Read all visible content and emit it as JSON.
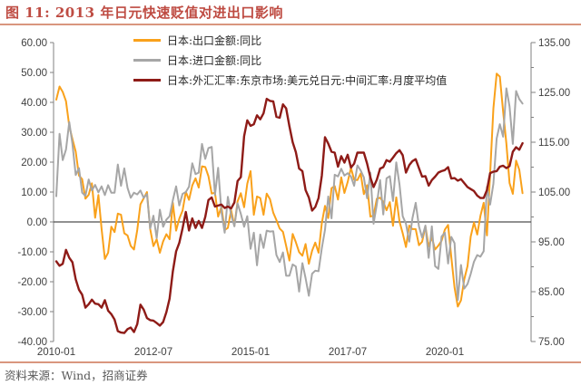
{
  "figure": {
    "title": "图 11: 2013 年日元快速贬值对进出口影响",
    "source": "资料来源：Wind，招商证券"
  },
  "legend": [
    {
      "label": "日本:出口金额:同比",
      "color": "#F9A11B"
    },
    {
      "label": "日本:进口金额:同比",
      "color": "#A6A6A6"
    },
    {
      "label": "日本:外汇汇率:东京市场:美元兑日元:中间汇率:月度平均值",
      "color": "#8E1B17"
    }
  ],
  "colors": {
    "title": "#BE4B42",
    "rule": "#D9967E",
    "axis": "#808080",
    "tick_text": "#404040",
    "zero_line": "#4D4D4D",
    "export_line": "#F9A11B",
    "import_line": "#A6A6A6",
    "fx_line": "#8E1B17"
  },
  "chart_data": {
    "type": "line",
    "title": "2013 年日元快速贬值对进出口影响",
    "x_monthly_from": "2010-01",
    "x_monthly_to": "2022-01",
    "x_tick_labels": [
      "2010-01",
      "2012-07",
      "2015-01",
      "2017-07",
      "2020-01"
    ],
    "x_tick_interval_months": 30,
    "grid": false,
    "zero_line": true,
    "left_axis": {
      "min": -40,
      "max": 60,
      "step": 10,
      "tick_labels": [
        "60.00",
        "50.00",
        "40.00",
        "30.00",
        "20.00",
        "10.00",
        "0.00",
        "-10.00",
        "-20.00",
        "-30.00",
        "-40.00"
      ]
    },
    "right_axis": {
      "min": 75,
      "max": 135,
      "step": 10,
      "minor_step": 5,
      "tick_labels": [
        "135.00",
        "125.00",
        "115.00",
        "105.00",
        "95.00",
        "85.00",
        "75.00"
      ]
    },
    "series": [
      {
        "name": "日本:出口金额:同比",
        "axis": "left",
        "color": "#F9A11B",
        "values": [
          40.9,
          45.3,
          43.5,
          40.4,
          32.1,
          27.7,
          23.5,
          15.5,
          14.3,
          7.8,
          9.1,
          12.9,
          1.4,
          9.0,
          -2.3,
          -12.4,
          -10.3,
          -1.6,
          -3.4,
          2.8,
          2.4,
          -3.8,
          -4.5,
          -8.0,
          -9.2,
          -2.7,
          5.9,
          7.9,
          10.0,
          -2.3,
          -8.1,
          -5.8,
          -10.3,
          -6.5,
          -4.1,
          -5.8,
          6.4,
          -2.9,
          1.1,
          3.8,
          10.1,
          7.4,
          12.2,
          14.6,
          11.5,
          18.6,
          18.4,
          15.3,
          9.5,
          9.8,
          1.8,
          5.1,
          -2.7,
          -2.0,
          3.9,
          -1.3,
          6.9,
          9.6,
          4.9,
          12.8,
          17.0,
          2.4,
          8.5,
          8.0,
          2.4,
          9.5,
          7.6,
          3.1,
          0.6,
          -2.2,
          -3.3,
          -8.0,
          -12.9,
          -4.0,
          -6.8,
          -10.1,
          -11.3,
          -7.4,
          -14.0,
          -9.6,
          -6.9,
          -10.3,
          -0.4,
          5.4,
          1.3,
          11.3,
          12.0,
          7.5,
          14.9,
          9.7,
          13.4,
          18.1,
          14.1,
          14.0,
          16.2,
          9.3,
          12.3,
          1.8,
          2.1,
          7.8,
          8.1,
          6.7,
          3.9,
          6.6,
          -1.3,
          8.2,
          0.1,
          -3.8,
          -8.4,
          -1.2,
          -2.4,
          -2.4,
          -7.8,
          -6.6,
          -1.5,
          -8.2,
          -5.2,
          -9.2,
          -7.9,
          -6.3,
          -2.6,
          -1.0,
          -11.7,
          -21.9,
          -28.3,
          -26.2,
          -19.2,
          -14.8,
          -4.9,
          -0.2,
          -4.2,
          2.0,
          6.4,
          -4.5,
          16.1,
          38.0,
          49.6,
          48.6,
          37.0,
          26.2,
          13.0,
          9.4,
          20.5,
          17.5,
          9.6
        ]
      },
      {
        "name": "日本:进口金额:同比",
        "axis": "left",
        "color": "#A6A6A6",
        "values": [
          8.6,
          29.5,
          20.7,
          24.2,
          33.4,
          26.1,
          15.7,
          18.0,
          9.8,
          8.7,
          14.2,
          10.5,
          12.4,
          9.9,
          11.9,
          9.0,
          12.3,
          9.8,
          9.8,
          19.2,
          12.1,
          17.9,
          11.4,
          8.1,
          9.8,
          9.2,
          10.5,
          8.1,
          9.3,
          -2.2,
          2.1,
          -5.4,
          4.1,
          -1.6,
          0.8,
          1.9,
          7.3,
          11.9,
          5.5,
          9.4,
          10.0,
          11.8,
          19.6,
          16.0,
          16.5,
          26.1,
          21.1,
          24.7,
          25.1,
          9.0,
          18.1,
          3.4,
          -3.6,
          8.4,
          2.3,
          -1.5,
          6.2,
          2.7,
          -1.6,
          1.9,
          -9.0,
          -3.6,
          -14.5,
          -4.2,
          -8.7,
          -2.9,
          -3.2,
          -3.1,
          -11.1,
          -13.4,
          -10.2,
          -18.0,
          -18.0,
          -14.2,
          -14.9,
          -23.3,
          -13.8,
          -18.8,
          -24.7,
          -17.3,
          -16.3,
          -16.5,
          -8.8,
          -2.6,
          8.5,
          1.2,
          15.8,
          15.2,
          17.8,
          15.5,
          16.3,
          15.2,
          12.1,
          18.9,
          17.2,
          14.9,
          7.9,
          16.5,
          -0.6,
          5.9,
          14.0,
          2.5,
          14.6,
          15.3,
          7.0,
          19.9,
          12.5,
          1.9,
          -0.6,
          -6.6,
          1.2,
          6.4,
          -1.5,
          -5.2,
          -1.2,
          -12.0,
          -1.5,
          -14.8,
          -15.7,
          -4.9,
          -3.6,
          -13.9,
          -5.0,
          -7.1,
          -26.1,
          -14.4,
          -22.3,
          -20.8,
          -17.4,
          -13.3,
          -11.1,
          -11.6,
          -9.8,
          11.8,
          5.8,
          12.8,
          27.9,
          32.7,
          28.5,
          44.7,
          38.6,
          26.1,
          43.8,
          41.1,
          39.6
        ]
      },
      {
        "name": "日本:外汇汇率:东京市场:美元兑日元:中间汇率:月度平均值",
        "axis": "right",
        "color": "#8E1B17",
        "values": [
          91.1,
          90.2,
          90.6,
          93.4,
          91.8,
          90.9,
          87.5,
          85.4,
          84.4,
          81.8,
          82.5,
          83.4,
          82.6,
          82.5,
          81.8,
          83.3,
          81.2,
          80.5,
          79.4,
          77.1,
          76.8,
          76.7,
          77.5,
          77.8,
          76.9,
          78.5,
          82.4,
          81.4,
          79.7,
          79.3,
          79.2,
          78.7,
          78.2,
          78.9,
          80.9,
          83.6,
          89.1,
          93.1,
          94.8,
          97.7,
          101.0,
          97.3,
          99.7,
          97.8,
          99.2,
          97.8,
          100.0,
          103.4,
          103.9,
          102.1,
          102.3,
          102.5,
          101.8,
          102.1,
          101.7,
          102.9,
          107.2,
          108.0,
          116.2,
          119.4,
          118.3,
          118.6,
          120.4,
          119.6,
          120.8,
          123.7,
          123.3,
          123.2,
          120.1,
          119.9,
          122.6,
          121.8,
          118.2,
          115.0,
          113.0,
          109.7,
          109.2,
          105.4,
          103.9,
          101.3,
          102.0,
          103.8,
          108.3,
          116.0,
          114.7,
          113.1,
          112.9,
          110.1,
          112.2,
          110.9,
          112.5,
          109.9,
          110.7,
          112.9,
          112.9,
          112.9,
          110.7,
          107.9,
          106.0,
          107.5,
          109.7,
          110.0,
          111.4,
          111.1,
          111.9,
          112.8,
          113.4,
          112.4,
          108.9,
          110.4,
          111.2,
          111.6,
          109.8,
          108.1,
          108.2,
          106.3,
          107.4,
          108.1,
          108.9,
          109.2,
          109.4,
          110.0,
          107.7,
          107.8,
          107.3,
          107.6,
          106.8,
          106.0,
          105.6,
          105.2,
          104.3,
          103.8,
          103.8,
          105.4,
          108.8,
          109.1,
          109.2,
          110.1,
          110.3,
          109.8,
          110.2,
          113.1,
          114.0,
          113.5,
          114.8
        ]
      }
    ]
  }
}
